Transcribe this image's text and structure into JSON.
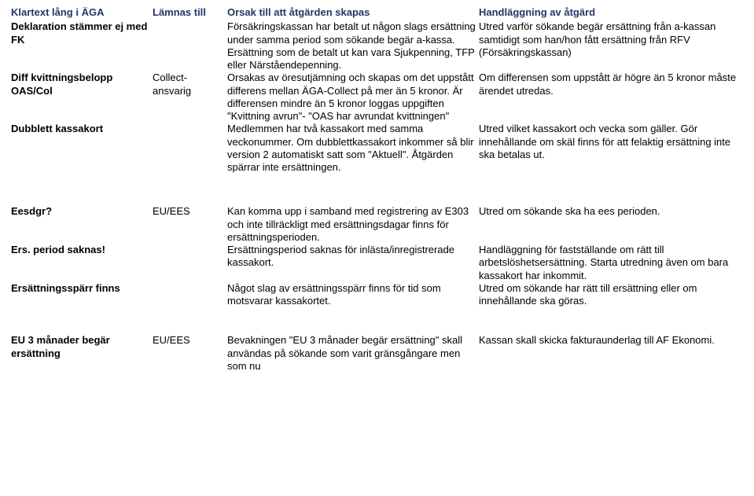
{
  "colors": {
    "header_text": "#1f3864",
    "body_text": "#000000",
    "background": "#ffffff"
  },
  "typography": {
    "font_family": "Arial",
    "font_size_pt": 10,
    "header_weight": "bold"
  },
  "table": {
    "columns": [
      "Klartext lång i ÄGA",
      "Lämnas till",
      "Orsak till att åtgärden skapas",
      "Handläggning av åtgärd"
    ],
    "rows": [
      {
        "c1": "Deklaration stämmer ej med FK",
        "c2": "",
        "c3": "Försäkringskassan har betalt ut någon slags ersättning under samma period som sökande begär a-kassa. Ersättning som de betalt ut kan vara Sjukpenning, TFP eller Närståendepenning.",
        "c4": "Utred varför sökande begär ersättning från a-kassan samtidigt som han/hon fått ersättning från RFV (Försäkringskassan)"
      },
      {
        "c1": "Diff kvittningsbelopp OAS/Col",
        "c2": "Collect-ansvarig",
        "c3": "Orsakas av öresutjämning och skapas om det uppstått differens mellan ÄGA-Collect på mer än 5 kronor. Är differensen mindre än 5 kronor loggas uppgiften \"Kvittning avrun\"- \"OAS har avrundat kvittningen\"",
        "c4": "Om differensen som uppstått är högre än 5 kronor måste ärendet utredas."
      },
      {
        "c1": "Dubblett kassakort",
        "c2": "",
        "c3": "Medlemmen har två kassakort med samma veckonummer.\nOm dubblettkassakort inkommer så blir version 2 automatiskt satt som \"Aktuell\". Åtgärden spärrar inte ersättningen.",
        "c4": "Utred vilket kassakort och vecka som gäller. Gör innehållande om skäl finns för att felaktig ersättning inte ska betalas ut."
      },
      {
        "c1": "Eesdgr?",
        "c2": "EU/EES",
        "c3": "Kan komma upp i samband med registrering av E303 och inte tillräckligt med ersättningsdagar finns för ersättningsperioden.",
        "c4": "Utred om sökande ska ha ees perioden."
      },
      {
        "c1": "Ers. period saknas!",
        "c2": "",
        "c3": "Ersättningsperiod saknas för inlästa/inregistrerade kassakort.",
        "c4": "Handläggning för fastställande om rätt till arbetslöshetsersättning.\nStarta utredning även om bara kassakort har inkommit."
      },
      {
        "c1": "Ersättningsspärr finns",
        "c2": "",
        "c3": "Något slag av ersättningsspärr finns för tid som motsvarar kassakortet.",
        "c4": "Utred om sökande har rätt till ersättning eller om innehållande ska göras."
      },
      {
        "c1": "EU 3 månader begär ersättning",
        "c2": "EU/EES",
        "c3": "Bevakningen \"EU 3 månader begär ersättning\" skall användas på sökande som varit gränsgångare men som nu",
        "c4": "Kassan skall skicka fakturaunderlag till AF Ekonomi."
      }
    ]
  }
}
